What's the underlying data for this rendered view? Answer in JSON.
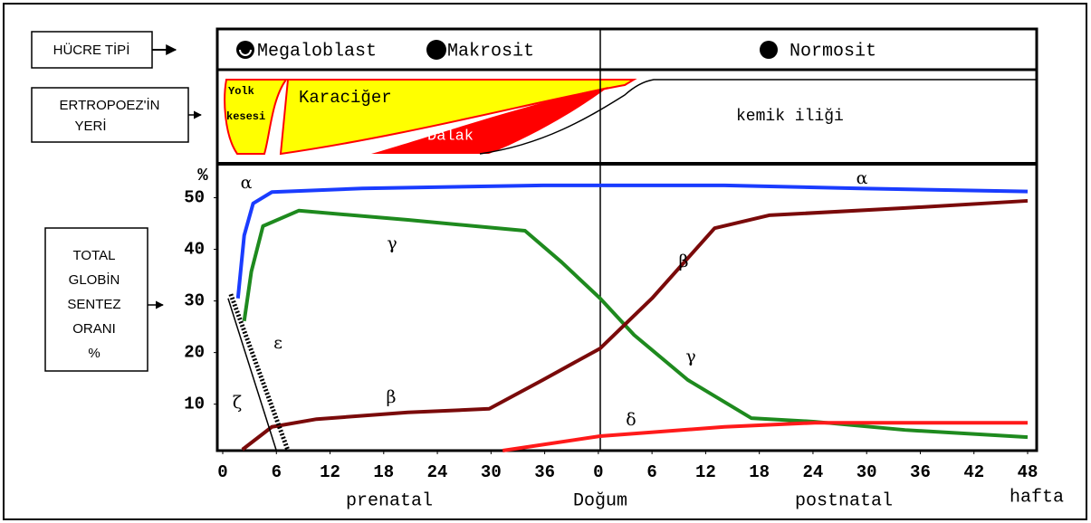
{
  "left_labels": {
    "cell_type": "HÜCRE TİPİ",
    "site": [
      "ERTROPOEZ'İN",
      "YERİ"
    ],
    "synthesis": [
      "TOTAL",
      "GLOBİN",
      "SENTEZ",
      "ORANI",
      "%"
    ]
  },
  "cell_types": [
    "Megaloblast",
    "Makrosit",
    "Normosit"
  ],
  "sites": {
    "yolk_sac": [
      "Yolk",
      "kesesi"
    ],
    "liver": "Karaciğer",
    "spleen": "Dalak",
    "bone_marrow": "kemik iliği"
  },
  "chart_data": {
    "type": "line",
    "y_label": "%",
    "x_periods": [
      "prenatal",
      "Doğum",
      "postnatal"
    ],
    "x_label": "hafta",
    "xlim": [
      0,
      90
    ],
    "xticks": [
      0,
      6,
      12,
      18,
      24,
      30,
      36,
      {
        "value": 42,
        "label": "0"
      },
      {
        "value": 48,
        "label": "6"
      },
      {
        "value": 54,
        "label": "12"
      },
      {
        "value": 60,
        "label": "18"
      },
      {
        "value": 66,
        "label": "24"
      },
      {
        "value": 72,
        "label": "30"
      },
      {
        "value": 78,
        "label": "36"
      },
      {
        "value": 84,
        "label": "42"
      },
      {
        "value": 90,
        "label": "48"
      }
    ],
    "ylim": [
      1,
      55
    ],
    "yticks": [
      10,
      20,
      30,
      40,
      50
    ],
    "series": [
      {
        "name": "α",
        "color": "#1a3cff",
        "x": [
          1.7,
          2.4,
          3.4,
          5.5,
          15.6,
          35.8,
          56.1,
          71.3,
          90
        ],
        "values": [
          30.5,
          42.7,
          48.9,
          51.1,
          51.8,
          52.4,
          52.4,
          51.8,
          51.2
        ]
      },
      {
        "name": "γ",
        "color": "#1e8a1e",
        "x": [
          2.4,
          3.2,
          4.5,
          8.5,
          20.7,
          33.8,
          37.9,
          42.2,
          46,
          52,
          59.1,
          66.2,
          76.3,
          90
        ],
        "values": [
          26.1,
          35.7,
          44.5,
          47.5,
          45.7,
          43.6,
          37.5,
          30.5,
          23.4,
          14.7,
          7.3,
          6.6,
          5.0,
          3.6
        ]
      },
      {
        "name": "β",
        "color": "#7a0a0a",
        "x": [
          2.2,
          5.5,
          10.5,
          20.7,
          29.8,
          35.8,
          42.2,
          48,
          55,
          61.1,
          76.3,
          90
        ],
        "values": [
          1.2,
          5.6,
          7.1,
          8.4,
          9.1,
          14.7,
          20.8,
          30.5,
          44.1,
          46.6,
          48.0,
          49.4
        ]
      },
      {
        "name": "δ",
        "color": "#ff1a1a",
        "x": [
          31.3,
          42.2,
          56.1,
          66.2,
          90
        ],
        "values": [
          1.0,
          3.8,
          5.6,
          6.4,
          6.4
        ]
      },
      {
        "name": "ε",
        "color": "#000000",
        "x": [
          0.9,
          7.3
        ],
        "values": [
          31.3,
          1.0
        ]
      },
      {
        "name": "ζ",
        "color": "#000000",
        "x": [
          0.6,
          6
        ],
        "values": [
          30.5,
          1.0
        ]
      }
    ]
  }
}
